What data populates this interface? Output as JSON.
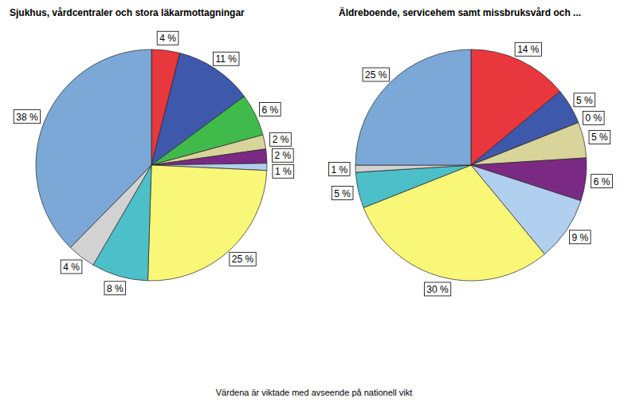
{
  "chart_data": [
    {
      "type": "pie",
      "title": "Sjukhus, vårdcentraler och stora läkarmottagningar",
      "values": [
        4,
        11,
        6,
        2,
        2,
        1,
        25,
        8,
        4,
        38
      ],
      "value_labels": [
        "4 %",
        "11 %",
        "6 %",
        "2 %",
        "2 %",
        "1 %",
        "25 %",
        "8 %",
        "4 %",
        "38 %"
      ],
      "colors": [
        "#e8383d",
        "#3e58ac",
        "#3fba4b",
        "#d8d49a",
        "#7a2a83",
        "#b1cfee",
        "#f9f778",
        "#4dbfc8",
        "#d2d2d2",
        "#7ba8d6"
      ],
      "data_labels": true
    },
    {
      "type": "pie",
      "title": "Äldreboende, servicehem samt missbruksvård och ...",
      "values": [
        14,
        5,
        0,
        5,
        6,
        9,
        30,
        5,
        1,
        25
      ],
      "value_labels": [
        "14 %",
        "5 %",
        "0 %",
        "5 %",
        "6 %",
        "9 %",
        "30 %",
        "5 %",
        "1 %",
        "25 %"
      ],
      "colors": [
        "#e8383d",
        "#3e58ac",
        "#3fba4b",
        "#d8d49a",
        "#7a2a83",
        "#b1cfee",
        "#f9f778",
        "#4dbfc8",
        "#d2d2d2",
        "#7ba8d6"
      ],
      "data_labels": true
    }
  ],
  "footnote": "Värdena är viktade med avseende på nationell vikt"
}
